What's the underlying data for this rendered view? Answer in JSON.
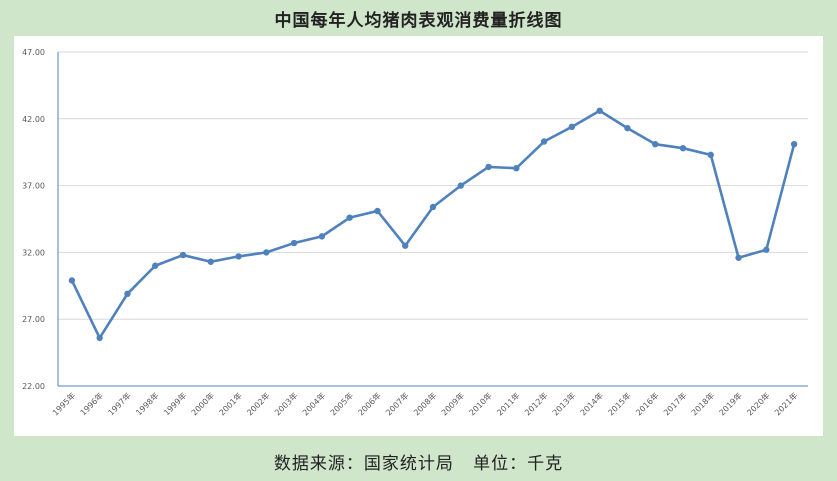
{
  "chart_data": {
    "type": "line",
    "title": "中国每年人均猪肉表观消费量折线图",
    "categories": [
      "1995年",
      "1996年",
      "1997年",
      "1998年",
      "1999年",
      "2000年",
      "2001年",
      "2002年",
      "2003年",
      "2004年",
      "2005年",
      "2006年",
      "2007年",
      "2008年",
      "2009年",
      "2010年",
      "2011年",
      "2012年",
      "2013年",
      "2014年",
      "2015年",
      "2016年",
      "2017年",
      "2018年",
      "2019年",
      "2020年",
      "2021年"
    ],
    "series": [
      {
        "values": [
          29.9,
          25.6,
          28.9,
          31.0,
          31.8,
          31.3,
          31.7,
          32.0,
          32.7,
          33.2,
          34.6,
          35.1,
          32.5,
          35.4,
          37.0,
          38.4,
          38.3,
          40.3,
          41.4,
          42.6,
          41.3,
          40.1,
          39.8,
          39.3,
          31.6,
          32.2,
          40.1
        ]
      }
    ],
    "y_ticks": [
      "22.00",
      "27.00",
      "32.00",
      "37.00",
      "42.00",
      "47.00"
    ],
    "ylim": [
      22,
      47
    ],
    "grid": true,
    "line_color": "#4f81bd"
  },
  "footer": {
    "source": "数据来源：国家统计局",
    "unit": "单位：千克"
  }
}
